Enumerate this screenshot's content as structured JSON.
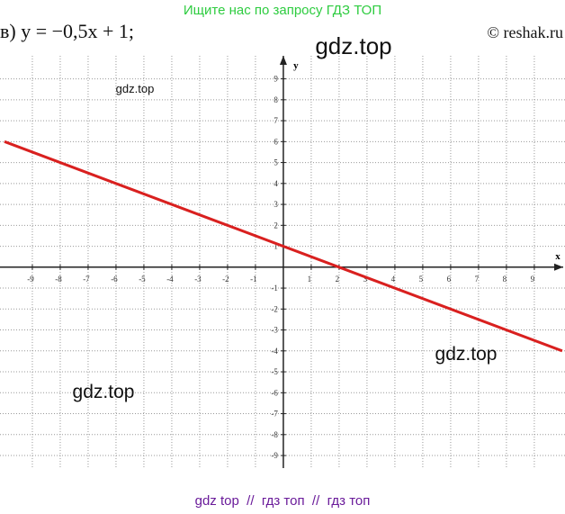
{
  "header": "Ищите нас по запросу ГДЗ ТОП",
  "problem": "в) y = −0,5x + 1;",
  "copyright": "© reshak.ru",
  "watermarks": [
    "gdz.top",
    "gdz.top",
    "gdz.top",
    "gdz.top"
  ],
  "footer": "gdz top  //  гдз топ  //  гдз топ",
  "chart_data": {
    "type": "line",
    "x_label": "x",
    "y_label": "y",
    "xlim": [
      -10.16,
      10.1
    ],
    "ylim": [
      -9.6,
      10.1
    ],
    "xticks": [
      -9,
      -8,
      -7,
      -6,
      -5,
      -4,
      -3,
      -2,
      -1,
      1,
      2,
      3,
      4,
      5,
      6,
      7,
      8,
      9
    ],
    "yticks": [
      -9,
      -8,
      -7,
      -6,
      -5,
      -4,
      -3,
      -2,
      -1,
      1,
      2,
      3,
      4,
      5,
      6,
      7,
      8,
      9
    ],
    "grid": true,
    "series": [
      {
        "color": "#d9201f",
        "x": [
          -10,
          10
        ],
        "values": [
          6,
          -4
        ]
      }
    ]
  }
}
